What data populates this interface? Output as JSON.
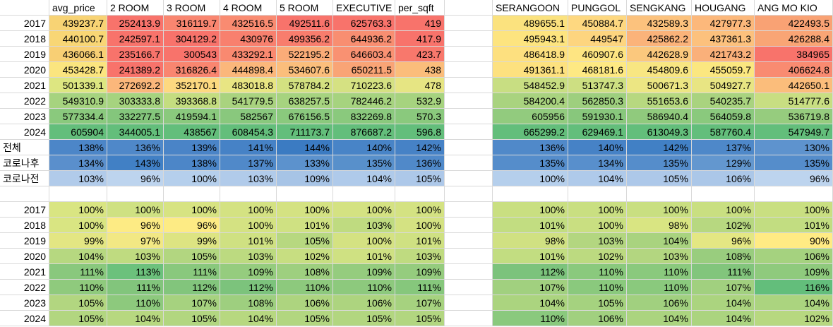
{
  "left_headers": [
    "avg_price",
    "2 ROOM",
    "3 ROOM",
    "4 ROOM",
    "5 ROOM",
    "EXECUTIVE",
    "per_sqft"
  ],
  "right_headers": [
    "SERANGOON",
    "PUNGGOL",
    "SENGKANG",
    "HOUGANG",
    "ANG MO KIO"
  ],
  "years": [
    "2017",
    "2018",
    "2019",
    "2020",
    "2021",
    "2022",
    "2023",
    "2024"
  ],
  "summary_labels": [
    "전체",
    "코로나후",
    "코로나전"
  ],
  "price_left": [
    [
      "439237.7",
      "252413.9",
      "316119.7",
      "432516.5",
      "492511.6",
      "625763.3",
      "419"
    ],
    [
      "440100.7",
      "242597.1",
      "304129.2",
      "430976",
      "499356.2",
      "644936.2",
      "417.9"
    ],
    [
      "436066.1",
      "235166.7",
      "300543",
      "433292.1",
      "522195.2",
      "646603.4",
      "423.7"
    ],
    [
      "453428.7",
      "241389.2",
      "316826.4",
      "444898.4",
      "534607.6",
      "650211.5",
      "438"
    ],
    [
      "501339.1",
      "272692.2",
      "352170.1",
      "483018.8",
      "578784.2",
      "710223.6",
      "478"
    ],
    [
      "549310.9",
      "303333.8",
      "393368.8",
      "541779.5",
      "638257.5",
      "782446.2",
      "532.9"
    ],
    [
      "577334.4",
      "332277.5",
      "419594.1",
      "582567",
      "676156.5",
      "832269.8",
      "570.3"
    ],
    [
      "605904",
      "344005.1",
      "438567",
      "608454.3",
      "711173.7",
      "876687.2",
      "596.8"
    ]
  ],
  "price_right": [
    [
      "489655.1",
      "450884.7",
      "432589.3",
      "427977.3",
      "422493.5"
    ],
    [
      "495943.1",
      "449547",
      "425862.2",
      "437361.3",
      "426288.4"
    ],
    [
      "486418.9",
      "460907.6",
      "442628.9",
      "421743.2",
      "384965"
    ],
    [
      "491361.1",
      "468181.6",
      "454809.6",
      "455059.7",
      "406624.8"
    ],
    [
      "548452.9",
      "513747.3",
      "500671.3",
      "504927.7",
      "442650.1"
    ],
    [
      "584200.4",
      "562850.3",
      "551653.6",
      "540235.7",
      "514777.6"
    ],
    [
      "605956",
      "591930.1",
      "586940.4",
      "564059.8",
      "536719.8"
    ],
    [
      "665299.2",
      "629469.1",
      "613049.3",
      "587760.4",
      "547949.7"
    ]
  ],
  "price_left_colors": [
    [
      "#f8d374",
      "#f8736b",
      "#f98670",
      "#f98b71",
      "#f8736b",
      "#f8736b",
      "#f8736b"
    ],
    [
      "#f8d675",
      "#f8736b",
      "#f8736b",
      "#f8806e",
      "#f87d6d",
      "#f88e71",
      "#f8736b"
    ],
    [
      "#f8cf74",
      "#f8736b",
      "#f8736b",
      "#f98970",
      "#fbac78",
      "#f99172",
      "#f8786c"
    ],
    [
      "#fbe57f",
      "#f8736b",
      "#f98670",
      "#fbb77b",
      "#fbbe7c",
      "#f9a476",
      "#fbbd7b"
    ],
    [
      "#dde681",
      "#fbb77b",
      "#fdd980",
      "#e8e583",
      "#d3e181",
      "#d5e182",
      "#e6e583"
    ],
    [
      "#a6d37f",
      "#a6d37f",
      "#c4dd80",
      "#a9d37f",
      "#a6d37f",
      "#a6d37f",
      "#a6d37f"
    ],
    [
      "#8ac97d",
      "#84c67c",
      "#8ac97d",
      "#89c87d",
      "#8ac97d",
      "#8ac97d",
      "#8ac97d"
    ],
    [
      "#63be7b",
      "#63be7b",
      "#63be7b",
      "#63be7b",
      "#63be7b",
      "#63be7b",
      "#63be7b"
    ]
  ],
  "price_right_colors": [
    [
      "#fbe27e",
      "#fed880",
      "#fcc27d",
      "#fcb87b",
      "#f9a274"
    ],
    [
      "#fde47f",
      "#fdd57f",
      "#fbb37a",
      "#fcc17d",
      "#f9a575"
    ],
    [
      "#fde07f",
      "#fee582",
      "#fbc87d",
      "#fab07a",
      "#f8736b"
    ],
    [
      "#fde17f",
      "#fee983",
      "#f8e682",
      "#fbe780",
      "#f98b71"
    ],
    [
      "#c8de82",
      "#cddf82",
      "#ece683",
      "#e8e583",
      "#fbbd7b"
    ],
    [
      "#a9d37f",
      "#9ecf7e",
      "#b7d880",
      "#a9d37f",
      "#c8de82"
    ],
    [
      "#92cb7e",
      "#88c77c",
      "#90ca7d",
      "#8ac97d",
      "#96cc7e"
    ],
    [
      "#63be7b",
      "#63be7b",
      "#63be7b",
      "#63be7b",
      "#63be7b"
    ]
  ],
  "summary_left": [
    [
      "138%",
      "136%",
      "139%",
      "141%",
      "144%",
      "140%",
      "142%"
    ],
    [
      "134%",
      "143%",
      "138%",
      "137%",
      "133%",
      "135%",
      "136%"
    ],
    [
      "103%",
      "96%",
      "100%",
      "103%",
      "109%",
      "104%",
      "105%"
    ]
  ],
  "summary_right": [
    [
      "136%",
      "140%",
      "142%",
      "137%",
      "130%"
    ],
    [
      "135%",
      "134%",
      "135%",
      "129%",
      "135%"
    ],
    [
      "100%",
      "104%",
      "105%",
      "106%",
      "96%"
    ]
  ],
  "summary_left_colors": [
    [
      "#4c86c8",
      "#4f88c9",
      "#4a84c7",
      "#4682c6",
      "#3b7bc2",
      "#4884c7",
      "#4682c6"
    ],
    [
      "#5a8fcc",
      "#4180c5",
      "#4c86c8",
      "#5089c9",
      "#5c92cd",
      "#5890cb",
      "#5089c9"
    ],
    [
      "#b1cbea",
      "#bdd4ee",
      "#b5cfec",
      "#b1cbea",
      "#a7c4e6",
      "#afcaea",
      "#adc8e9"
    ]
  ],
  "summary_right_colors": [
    [
      "#5089c9",
      "#4682c6",
      "#4180c5",
      "#4e88c9",
      "#5e93ce"
    ],
    [
      "#558dcb",
      "#588fcc",
      "#558dcb",
      "#6397cf",
      "#558dcb"
    ],
    [
      "#b5cfec",
      "#afcaea",
      "#adc8e9",
      "#abc7e8",
      "#bdd4ee"
    ]
  ],
  "ratio_left": [
    [
      "100%",
      "100%",
      "100%",
      "100%",
      "100%",
      "100%",
      "100%"
    ],
    [
      "100%",
      "96%",
      "96%",
      "100%",
      "101%",
      "103%",
      "100%"
    ],
    [
      "99%",
      "97%",
      "99%",
      "101%",
      "105%",
      "100%",
      "101%"
    ],
    [
      "104%",
      "103%",
      "105%",
      "103%",
      "102%",
      "101%",
      "103%"
    ],
    [
      "111%",
      "113%",
      "111%",
      "109%",
      "108%",
      "109%",
      "109%"
    ],
    [
      "110%",
      "111%",
      "112%",
      "112%",
      "110%",
      "110%",
      "111%"
    ],
    [
      "105%",
      "110%",
      "107%",
      "108%",
      "106%",
      "106%",
      "107%"
    ],
    [
      "105%",
      "104%",
      "105%",
      "104%",
      "105%",
      "105%",
      "105%"
    ]
  ],
  "ratio_right": [
    [
      "100%",
      "100%",
      "100%",
      "100%",
      "100%"
    ],
    [
      "101%",
      "100%",
      "98%",
      "102%",
      "101%"
    ],
    [
      "98%",
      "103%",
      "104%",
      "96%",
      "90%"
    ],
    [
      "101%",
      "102%",
      "103%",
      "108%",
      "106%"
    ],
    [
      "112%",
      "110%",
      "110%",
      "111%",
      "109%"
    ],
    [
      "107%",
      "110%",
      "110%",
      "107%",
      "116%"
    ],
    [
      "104%",
      "105%",
      "106%",
      "104%",
      "104%"
    ],
    [
      "110%",
      "106%",
      "104%",
      "104%",
      "102%"
    ]
  ],
  "ratio_left_colors": [
    [
      "#d9e582",
      "#cfe182",
      "#d7e382",
      "#d4e282",
      "#d4e282",
      "#d4e282",
      "#d4e282"
    ],
    [
      "#d9e582",
      "#fdeb84",
      "#fdeb84",
      "#d4e282",
      "#cfe182",
      "#bfdb80",
      "#d4e282"
    ],
    [
      "#e3e683",
      "#f2e884",
      "#dde482",
      "#cfe182",
      "#b7d880",
      "#d4e282",
      "#cfe182"
    ],
    [
      "#b6d880",
      "#bfdb80",
      "#b2d680",
      "#bcda80",
      "#c7de81",
      "#cfe182",
      "#bfdb80"
    ],
    [
      "#89c87d",
      "#6cc17c",
      "#89c87d",
      "#95cc7e",
      "#9ecf7f",
      "#95cc7e",
      "#95cc7e"
    ],
    [
      "#8fca7d",
      "#82c57c",
      "#82c57c",
      "#7cc37c",
      "#8dc97d",
      "#8dc97d",
      "#86c77c"
    ],
    [
      "#b2d680",
      "#8dc97d",
      "#a6d27f",
      "#9ecf7f",
      "#add47f",
      "#add47f",
      "#a6d27f"
    ],
    [
      "#b2d680",
      "#b7d880",
      "#b2d680",
      "#b7d880",
      "#b2d680",
      "#b2d680",
      "#b2d680"
    ]
  ],
  "ratio_right_colors": [
    [
      "#c9df81",
      "#c9df81",
      "#c9df81",
      "#c9df81",
      "#c9df81"
    ],
    [
      "#c2dd81",
      "#c9df81",
      "#d9e582",
      "#b7d880",
      "#c2dd81"
    ],
    [
      "#d0e182",
      "#b3d680",
      "#a9d37f",
      "#e4e783",
      "#ffeb84"
    ],
    [
      "#c2dd81",
      "#bcda80",
      "#b3d680",
      "#99cd7e",
      "#a5d27f"
    ],
    [
      "#7cc37c",
      "#8ac97d",
      "#8ac97d",
      "#82c57c",
      "#8fca7d"
    ],
    [
      "#a1d07f",
      "#8ac97d",
      "#8ac97d",
      "#a1d07f",
      "#63be7b"
    ],
    [
      "#abd47f",
      "#a5d27f",
      "#a1d07f",
      "#abd47f",
      "#abd47f"
    ],
    [
      "#8ac97d",
      "#a1d07f",
      "#abd47f",
      "#abd47f",
      "#b7d880"
    ]
  ]
}
